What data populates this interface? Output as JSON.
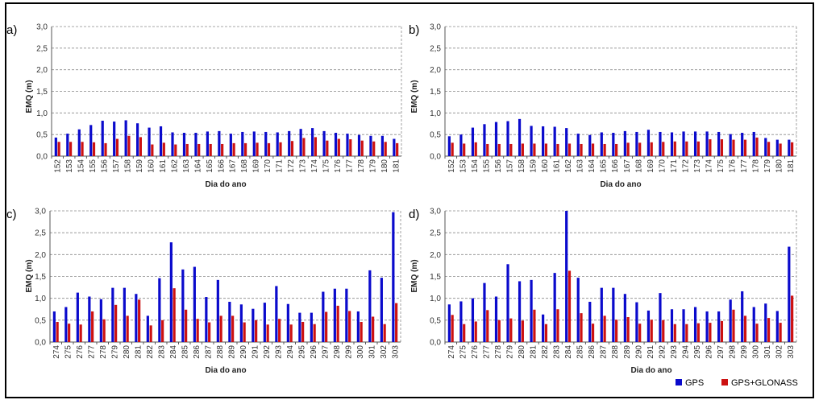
{
  "colors": {
    "gps": "#0a0acc",
    "gps_glonass": "#cc1111",
    "grid": "#8a8a8a"
  },
  "legend": {
    "gps": "GPS",
    "gps_glonass": "GPS+GLONASS"
  },
  "chart_data": [
    {
      "type": "bar",
      "panel": "a)",
      "xlabel": "Dia do ano",
      "ylabel": "EMQ (m)",
      "ylim": [
        0,
        3.0
      ],
      "yticks": [
        "0,0",
        "0,5",
        "1,0",
        "1,5",
        "2,0",
        "2,5",
        "3,0"
      ],
      "categories": [
        "152",
        "153",
        "154",
        "155",
        "156",
        "157",
        "158",
        "159",
        "160",
        "161",
        "162",
        "163",
        "164",
        "165",
        "166",
        "167",
        "168",
        "169",
        "170",
        "171",
        "172",
        "173",
        "174",
        "175",
        "176",
        "177",
        "178",
        "179",
        "180",
        "181"
      ],
      "series": [
        {
          "name": "GPS",
          "values": [
            0.43,
            0.52,
            0.62,
            0.72,
            0.82,
            0.8,
            0.83,
            0.76,
            0.66,
            0.69,
            0.55,
            0.54,
            0.54,
            0.57,
            0.58,
            0.52,
            0.56,
            0.57,
            0.56,
            0.55,
            0.58,
            0.63,
            0.65,
            0.58,
            0.54,
            0.52,
            0.49,
            0.47,
            0.47,
            0.4
          ]
        },
        {
          "name": "GPS+GLONASS",
          "values": [
            0.33,
            0.33,
            0.33,
            0.32,
            0.3,
            0.4,
            0.47,
            0.44,
            0.27,
            0.31,
            0.27,
            0.28,
            0.28,
            0.28,
            0.28,
            0.3,
            0.3,
            0.31,
            0.3,
            0.32,
            0.35,
            0.42,
            0.44,
            0.36,
            0.4,
            0.39,
            0.36,
            0.34,
            0.33,
            0.3
          ]
        }
      ]
    },
    {
      "type": "bar",
      "panel": "b)",
      "xlabel": "Dia do ano",
      "ylabel": "EMQ (m)",
      "ylim": [
        0,
        3.0
      ],
      "yticks": [
        "0,0",
        "0,5",
        "1,0",
        "1,5",
        "2,0",
        "2,5",
        "3,0"
      ],
      "categories": [
        "152",
        "153",
        "154",
        "155",
        "156",
        "157",
        "158",
        "159",
        "160",
        "161",
        "162",
        "163",
        "164",
        "165",
        "166",
        "167",
        "168",
        "169",
        "170",
        "171",
        "172",
        "173",
        "174",
        "175",
        "176",
        "177",
        "178",
        "179",
        "180",
        "181"
      ],
      "series": [
        {
          "name": "GPS",
          "values": [
            0.46,
            0.5,
            0.66,
            0.74,
            0.79,
            0.81,
            0.86,
            0.7,
            0.69,
            0.68,
            0.65,
            0.52,
            0.49,
            0.55,
            0.54,
            0.58,
            0.56,
            0.61,
            0.56,
            0.55,
            0.57,
            0.57,
            0.57,
            0.56,
            0.51,
            0.54,
            0.56,
            0.42,
            0.38,
            0.38
          ]
        },
        {
          "name": "GPS+GLONASS",
          "values": [
            0.31,
            0.29,
            0.32,
            0.28,
            0.28,
            0.28,
            0.29,
            0.29,
            0.29,
            0.28,
            0.29,
            0.28,
            0.29,
            0.28,
            0.28,
            0.31,
            0.31,
            0.32,
            0.33,
            0.34,
            0.34,
            0.34,
            0.39,
            0.39,
            0.38,
            0.38,
            0.43,
            0.33,
            0.29,
            0.32
          ]
        }
      ]
    },
    {
      "type": "bar",
      "panel": "c)",
      "xlabel": "Dia do ano",
      "ylabel": "EMQ (m)",
      "ylim": [
        0,
        3.0
      ],
      "yticks": [
        "0,0",
        "0,5",
        "1,0",
        "1,5",
        "2,0",
        "2,5",
        "3,0"
      ],
      "categories": [
        "274",
        "275",
        "276",
        "277",
        "278",
        "279",
        "280",
        "281",
        "282",
        "283",
        "284",
        "285",
        "286",
        "287",
        "288",
        "289",
        "290",
        "291",
        "292",
        "293",
        "294",
        "295",
        "296",
        "297",
        "298",
        "299",
        "300",
        "301",
        "302",
        "303"
      ],
      "series": [
        {
          "name": "GPS",
          "values": [
            0.7,
            0.8,
            1.13,
            1.04,
            0.98,
            1.24,
            1.24,
            1.1,
            0.6,
            1.46,
            2.28,
            1.66,
            1.72,
            1.03,
            1.42,
            0.92,
            0.86,
            0.76,
            0.9,
            1.28,
            0.87,
            0.67,
            0.67,
            1.15,
            1.22,
            1.22,
            0.7,
            1.64,
            1.47,
            2.97
          ]
        },
        {
          "name": "GPS+GLONASS",
          "values": [
            0.46,
            0.42,
            0.4,
            0.7,
            0.52,
            0.85,
            0.6,
            0.97,
            0.38,
            0.5,
            1.23,
            0.74,
            0.53,
            0.45,
            0.6,
            0.6,
            0.45,
            0.5,
            0.4,
            0.53,
            0.4,
            0.46,
            0.41,
            0.69,
            0.83,
            0.71,
            0.46,
            0.58,
            0.41,
            0.89
          ]
        }
      ]
    },
    {
      "type": "bar",
      "panel": "d)",
      "xlabel": "Dia do ano",
      "ylabel": "EMQ (m)",
      "ylim": [
        0,
        3.0
      ],
      "yticks": [
        "0,0",
        "0,5",
        "1,0",
        "1,5",
        "2,0",
        "2,5",
        "3,0"
      ],
      "categories": [
        "274",
        "275",
        "276",
        "277",
        "278",
        "279",
        "280",
        "281",
        "282",
        "283",
        "284",
        "285",
        "286",
        "287",
        "288",
        "289",
        "290",
        "291",
        "292",
        "293",
        "294",
        "295",
        "296",
        "297",
        "298",
        "299",
        "300",
        "301",
        "302",
        "303"
      ],
      "series": [
        {
          "name": "GPS",
          "values": [
            0.86,
            0.93,
            1.0,
            1.35,
            1.04,
            1.78,
            1.39,
            1.42,
            0.63,
            1.58,
            3.0,
            1.47,
            0.92,
            1.24,
            1.24,
            1.1,
            0.91,
            0.72,
            1.12,
            0.75,
            0.75,
            0.8,
            0.7,
            0.7,
            0.97,
            1.16,
            0.8,
            0.88,
            0.71,
            2.18
          ]
        },
        {
          "name": "GPS+GLONASS",
          "values": [
            0.62,
            0.41,
            0.47,
            0.73,
            0.5,
            0.54,
            0.49,
            0.74,
            0.41,
            0.75,
            1.63,
            0.66,
            0.42,
            0.6,
            0.51,
            0.57,
            0.42,
            0.51,
            0.5,
            0.41,
            0.41,
            0.43,
            0.44,
            0.48,
            0.74,
            0.6,
            0.42,
            0.55,
            0.44,
            1.06
          ]
        }
      ]
    }
  ]
}
